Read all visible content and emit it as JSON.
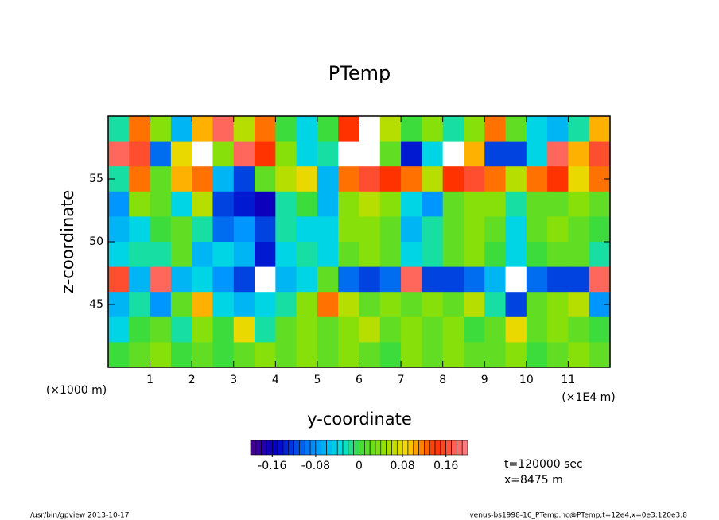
{
  "chart_data": {
    "type": "heatmap",
    "title": "PTemp",
    "xlabel": "y-coordinate",
    "ylabel": "z-coordinate",
    "x_unit_left": "(×1000 m)",
    "x_unit_right": "(×1E4 m)",
    "annotations": [
      "t=120000 sec",
      "x=8475 m"
    ],
    "footer_left": "/usr/bin/gpview   2013-10-17",
    "footer_right": "venus-bs1998-16_PTemp.nc@PTemp,t=12e4,x=0e3:120e3:8",
    "xlim": [
      0,
      12
    ],
    "ylim": [
      40,
      60
    ],
    "xticks": [
      1,
      2,
      3,
      4,
      5,
      6,
      7,
      8,
      9,
      10,
      11
    ],
    "yticks": [
      45,
      50,
      55
    ],
    "clim": [
      -0.2,
      0.2
    ],
    "cticks": [
      -0.16,
      -0.08,
      0,
      0.08,
      0.16
    ],
    "x": [
      0.25,
      0.75,
      1.25,
      1.75,
      2.25,
      2.75,
      3.25,
      3.75,
      4.25,
      4.75,
      5.25,
      5.75,
      6.25,
      6.75,
      7.25,
      7.75,
      8.25,
      8.75,
      9.25,
      9.75,
      10.25,
      10.75,
      11.25,
      11.75
    ],
    "y": [
      59,
      57,
      55,
      53,
      51,
      49,
      47,
      45,
      43,
      41
    ],
    "z": [
      [
        -0.02,
        0.12,
        0.04,
        -0.06,
        0.1,
        0.18,
        0.06,
        0.12,
        0.0,
        -0.04,
        0.0,
        0.14,
        0.2,
        0.06,
        0.0,
        0.04,
        -0.02,
        0.04,
        0.12,
        0.02,
        -0.04,
        -0.06,
        -0.02,
        0.1
      ],
      [
        0.18,
        0.16,
        -0.1,
        0.08,
        0.2,
        0.04,
        0.18,
        0.14,
        0.04,
        -0.04,
        -0.02,
        0.2,
        0.2,
        0.02,
        -0.14,
        -0.04,
        0.2,
        0.1,
        -0.12,
        -0.12,
        -0.04,
        0.18,
        0.1,
        0.16
      ],
      [
        -0.02,
        0.12,
        0.02,
        0.1,
        0.12,
        -0.06,
        -0.12,
        0.02,
        0.06,
        0.08,
        -0.06,
        0.12,
        0.16,
        0.14,
        0.12,
        0.06,
        0.14,
        0.16,
        0.12,
        0.06,
        0.12,
        0.14,
        0.08,
        0.12
      ],
      [
        -0.08,
        0.04,
        0.02,
        -0.04,
        0.06,
        -0.12,
        -0.14,
        -0.16,
        -0.02,
        0.0,
        -0.06,
        0.04,
        0.06,
        0.04,
        -0.04,
        -0.08,
        0.02,
        0.04,
        0.04,
        -0.02,
        0.02,
        0.02,
        0.04,
        0.02
      ],
      [
        -0.06,
        -0.04,
        0.0,
        0.02,
        -0.02,
        -0.1,
        -0.08,
        -0.12,
        -0.02,
        -0.04,
        -0.04,
        0.04,
        0.04,
        0.02,
        -0.06,
        -0.02,
        0.02,
        0.04,
        0.02,
        -0.04,
        0.02,
        0.04,
        0.02,
        0.0
      ],
      [
        -0.04,
        -0.02,
        -0.02,
        0.02,
        -0.06,
        -0.04,
        -0.06,
        -0.14,
        -0.04,
        -0.02,
        -0.04,
        0.02,
        0.04,
        0.02,
        -0.04,
        -0.02,
        0.02,
        0.04,
        0.0,
        -0.04,
        0.0,
        0.02,
        0.02,
        -0.02
      ],
      [
        0.16,
        -0.06,
        0.18,
        -0.06,
        -0.04,
        -0.08,
        -0.12,
        0.2,
        -0.06,
        -0.04,
        0.02,
        -0.1,
        -0.12,
        -0.1,
        0.18,
        -0.12,
        -0.12,
        -0.1,
        -0.06,
        0.2,
        -0.1,
        -0.12,
        -0.12,
        0.18
      ],
      [
        -0.06,
        -0.02,
        -0.08,
        0.02,
        0.1,
        -0.04,
        -0.06,
        -0.04,
        -0.02,
        0.04,
        0.12,
        0.06,
        0.02,
        0.04,
        0.02,
        0.04,
        0.02,
        0.06,
        -0.02,
        -0.12,
        0.02,
        0.04,
        0.06,
        -0.08
      ],
      [
        -0.04,
        0.0,
        0.02,
        -0.02,
        0.04,
        0.0,
        0.08,
        -0.02,
        0.02,
        0.04,
        0.02,
        0.04,
        0.06,
        0.02,
        0.04,
        0.02,
        0.04,
        0.0,
        0.02,
        0.08,
        0.02,
        0.04,
        0.02,
        0.0
      ],
      [
        0.0,
        0.02,
        0.04,
        0.0,
        0.02,
        0.0,
        0.02,
        0.04,
        0.02,
        0.04,
        0.02,
        0.04,
        0.02,
        0.0,
        0.04,
        0.02,
        0.04,
        0.02,
        0.02,
        0.04,
        0.0,
        0.02,
        0.04,
        0.02
      ]
    ]
  }
}
